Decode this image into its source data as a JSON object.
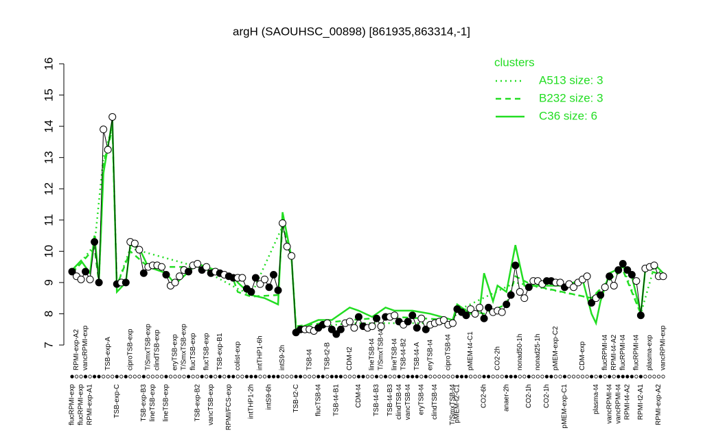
{
  "chart_data": {
    "type": "line",
    "title": "argH (SAOUHSC_00898) [861935,863314,-1]",
    "ylim": [
      7,
      16
    ],
    "yticks": [
      7,
      8,
      9,
      10,
      11,
      12,
      13,
      14,
      15,
      16
    ],
    "legend": "topright",
    "legend_title": "clusters",
    "categories_top": [
      null,
      "RPMI-exp-A2",
      null,
      "vancRPMI-exp",
      null,
      null,
      null,
      null,
      "TSB-exp-A",
      null,
      null,
      null,
      null,
      "ciproTSB-exp",
      null,
      null,
      null,
      "T/SmxTSB-exp",
      null,
      "clindTSB-exp",
      null,
      null,
      null,
      "eryTSB-exp",
      null,
      "T/SmxTSB-exp",
      null,
      "flucTSB-exp",
      null,
      null,
      "flucTSB-exp",
      null,
      null,
      "TSB-exp-B1",
      null,
      null,
      null,
      "colist-exp",
      null,
      null,
      null,
      null,
      "intTHP1-6h",
      null,
      null,
      null,
      null,
      "intS9-2h",
      null,
      null,
      null,
      null,
      null,
      "TSB-t4",
      null,
      null,
      null,
      "TSB-t2-B",
      null,
      null,
      null,
      null,
      "CDM-t2",
      null,
      null,
      null,
      null,
      "lineTSB-t4",
      null,
      "T/SmxTSB-t4",
      null,
      null,
      "lineTSB-t4",
      null,
      "TSB-t4-B2",
      null,
      null,
      "TSB-t4-A",
      null,
      null,
      "eryTSB-t4",
      null,
      null,
      null,
      "ciproTSB-t4",
      null,
      null,
      null,
      null,
      "pMEM-t4-C1",
      null,
      null,
      null,
      null,
      null,
      "CO2-2h",
      null,
      null,
      null,
      null,
      "nonad50-1h",
      null,
      null,
      null,
      "nonad25-1h",
      null,
      null,
      null,
      "pMEM-exp-C2",
      null,
      null,
      null,
      null,
      null,
      "CDM-exp",
      null,
      null,
      null,
      null,
      "flucRPMI-t4",
      null,
      "RPMI-t4-A2",
      null,
      "flucRPMI-t4",
      null,
      null,
      "flucRPMI-t4",
      null,
      null,
      "plasma-exp",
      null,
      null,
      "vancRPMI-exp"
    ],
    "categories_bottom": [
      "flucRPMI-exp",
      null,
      "flucRPMI-exp",
      null,
      "RPMI-exp-A1",
      null,
      null,
      null,
      null,
      null,
      "TSB-exp-C",
      null,
      null,
      null,
      null,
      null,
      "TSB-exp-B3",
      null,
      "lineTSB-exp",
      null,
      null,
      "lineTSB-exp",
      null,
      null,
      null,
      null,
      null,
      null,
      "TSB-exp-B2",
      null,
      null,
      "vancTSB-exp",
      null,
      null,
      null,
      "RPMI/FCS-exp",
      null,
      null,
      null,
      null,
      "intTHP1-2h",
      null,
      null,
      null,
      "intS9-6h",
      null,
      null,
      null,
      null,
      null,
      "TSB-t2-C",
      null,
      null,
      null,
      null,
      "flucTSB-t4",
      null,
      null,
      null,
      "TSB-t4-B1",
      null,
      null,
      null,
      null,
      "CDM-t4",
      null,
      null,
      null,
      "TSB-t4-B3",
      null,
      null,
      "TSB-t4-B3",
      null,
      "clindTSB-t4",
      null,
      "vancTSB-t4",
      null,
      null,
      "eryTSB-t4",
      null,
      null,
      "clindTSB-t4",
      null,
      null,
      null,
      "T/SmxTSB-t4",
      "pMEM-t2-C1",
      null,
      null,
      null,
      null,
      null,
      "CO2-6h",
      null,
      null,
      null,
      null,
      "anaer-2h",
      null,
      null,
      null,
      null,
      "CO2-1h",
      null,
      null,
      null,
      "CO2-1h",
      null,
      null,
      null,
      "pMEM-exp-C1",
      null,
      null,
      null,
      null,
      null,
      null,
      "plasma-t4",
      null,
      null,
      "vancRPMI-t4",
      null,
      "vancRPMI-t4",
      null,
      "RPMI-t4-A2",
      null,
      null,
      "RPMI-t2-A1",
      null,
      null,
      null,
      "RPMI-exp-A2",
      null
    ],
    "values": [
      9.35,
      9.2,
      9.1,
      9.35,
      9.1,
      10.3,
      9.0,
      13.9,
      13.25,
      14.3,
      8.95,
      9.0,
      9.0,
      10.3,
      10.25,
      10.05,
      9.3,
      9.5,
      9.55,
      9.55,
      9.5,
      9.25,
      8.9,
      9.0,
      9.2,
      9.4,
      9.35,
      9.55,
      9.6,
      9.4,
      9.5,
      9.3,
      9.35,
      9.3,
      9.25,
      9.2,
      9.15,
      9.15,
      9.15,
      8.8,
      8.7,
      9.15,
      8.95,
      9.1,
      8.85,
      9.25,
      8.75,
      10.9,
      10.15,
      9.85,
      7.4,
      7.5,
      7.5,
      7.5,
      7.45,
      7.55,
      7.65,
      7.7,
      7.5,
      7.35,
      7.5,
      7.7,
      7.75,
      7.55,
      7.9,
      7.6,
      7.55,
      7.6,
      7.85,
      7.6,
      7.9,
      7.9,
      7.95,
      7.75,
      7.65,
      7.75,
      7.95,
      7.55,
      7.85,
      7.5,
      7.65,
      7.7,
      7.75,
      7.8,
      7.65,
      7.7,
      8.15,
      8.05,
      7.95,
      8.15,
      8.0,
      8.2,
      7.85,
      8.2,
      8.05,
      8.1,
      8.05,
      8.3,
      8.6,
      9.55,
      8.7,
      8.5,
      8.85,
      9.05,
      9.05,
      8.95,
      9.05,
      9.05,
      9.0,
      9.0,
      8.85,
      8.95,
      8.85,
      9.0,
      9.1,
      9.2,
      8.35,
      8.5,
      8.6,
      8.85,
      9.2,
      8.9,
      9.4,
      9.6,
      9.4,
      9.25,
      9.05,
      7.95,
      9.45,
      9.5,
      9.55,
      9.2,
      9.2
    ],
    "filled": [
      true,
      false,
      false,
      true,
      false,
      true,
      true,
      false,
      false,
      false,
      true,
      false,
      true,
      false,
      false,
      false,
      true,
      false,
      false,
      false,
      false,
      true,
      false,
      false,
      false,
      false,
      true,
      false,
      false,
      true,
      false,
      true,
      false,
      true,
      false,
      true,
      true,
      false,
      false,
      true,
      true,
      true,
      false,
      false,
      true,
      true,
      true,
      false,
      false,
      false,
      true,
      true,
      false,
      false,
      false,
      true,
      true,
      false,
      true,
      true,
      true,
      false,
      false,
      false,
      true,
      true,
      false,
      false,
      true,
      false,
      true,
      false,
      false,
      true,
      false,
      true,
      true,
      true,
      false,
      true,
      false,
      false,
      false,
      false,
      false,
      false,
      true,
      true,
      true,
      false,
      false,
      false,
      true,
      true,
      false,
      false,
      false,
      true,
      true,
      true,
      false,
      false,
      true,
      false,
      false,
      false,
      true,
      true,
      false,
      false,
      true,
      false,
      false,
      false,
      false,
      false,
      true,
      false,
      true,
      false,
      true,
      false,
      true,
      true,
      true,
      true,
      false,
      true,
      false,
      false,
      false,
      false,
      false
    ],
    "series": [
      {
        "name": "A513 size: 3",
        "style": "dotted",
        "color": "#22dd22",
        "x": [
          0,
          5,
          7,
          9,
          10,
          13,
          28,
          37,
          40,
          47,
          49,
          50,
          62,
          85,
          86,
          99,
          116,
          123,
          127,
          130,
          132
        ],
        "values": [
          9.3,
          10.2,
          13.0,
          14.0,
          8.9,
          10.1,
          9.5,
          8.8,
          8.6,
          10.8,
          9.8,
          7.5,
          7.7,
          7.7,
          8.1,
          9.0,
          8.5,
          9.5,
          8.0,
          9.5,
          9.25
        ]
      },
      {
        "name": "B232 size: 3",
        "style": "dashed",
        "color": "#22dd22",
        "x": [
          0,
          5,
          6,
          7,
          9,
          10,
          13,
          17,
          28,
          36,
          37,
          40,
          46,
          47,
          49,
          50,
          62,
          72,
          85,
          86,
          92,
          97,
          99,
          103,
          116,
          120,
          123,
          127,
          128,
          132
        ],
        "values": [
          9.3,
          10.1,
          9.0,
          12.8,
          13.9,
          8.9,
          10.0,
          9.5,
          9.5,
          9.1,
          8.7,
          8.55,
          8.6,
          10.9,
          9.8,
          7.6,
          7.8,
          7.9,
          7.8,
          8.2,
          8.0,
          8.3,
          9.2,
          8.9,
          8.5,
          9.1,
          9.4,
          8.0,
          9.4,
          9.25
        ]
      },
      {
        "name": "C36 size: 6",
        "style": "solid",
        "color": "#22dd22",
        "x": [
          0,
          2,
          4,
          5,
          6,
          7,
          9,
          10,
          12,
          13,
          15,
          17,
          21,
          23,
          28,
          33,
          36,
          37,
          40,
          43,
          46,
          47,
          49,
          50,
          55,
          58,
          62,
          64,
          67,
          70,
          72,
          76,
          80,
          85,
          86,
          89,
          91,
          92,
          94,
          95,
          97,
          99,
          101,
          103,
          110,
          114,
          116,
          117,
          118,
          120,
          123,
          125,
          126,
          127,
          128,
          130,
          132
        ],
        "values": [
          9.4,
          9.7,
          9.3,
          10.5,
          9.1,
          12.5,
          14.2,
          8.7,
          9.0,
          10.2,
          10.1,
          9.5,
          9.3,
          8.95,
          9.6,
          9.35,
          9.2,
          9.0,
          8.6,
          8.5,
          8.3,
          11.25,
          9.8,
          7.5,
          7.8,
          7.8,
          8.2,
          8.1,
          7.9,
          8.2,
          8.1,
          8.1,
          8.0,
          7.8,
          8.3,
          8.0,
          8.1,
          9.3,
          8.4,
          8.9,
          8.7,
          10.2,
          8.9,
          8.9,
          8.9,
          9.1,
          8.0,
          7.7,
          8.4,
          9.3,
          9.5,
          9.2,
          8.6,
          8.0,
          9.4,
          9.6,
          9.3
        ]
      }
    ]
  }
}
